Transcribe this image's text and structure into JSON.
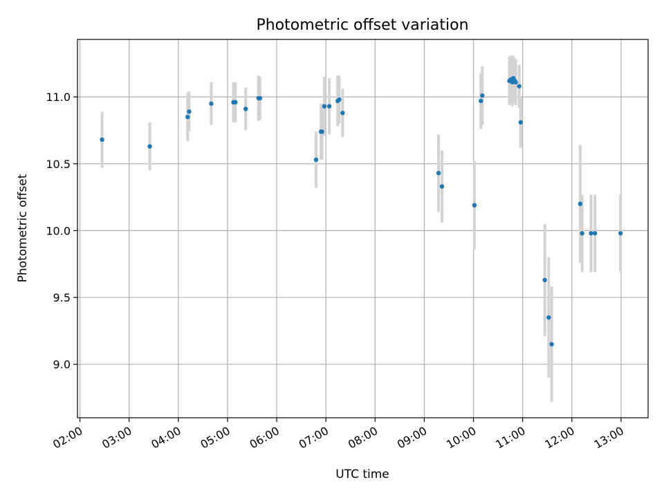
{
  "chart_data": {
    "type": "scatter",
    "title": "Photometric offset variation",
    "xlabel": "UTC time",
    "ylabel": "Photometric offset",
    "x_axis": {
      "unit": "hours UTC",
      "range": [
        1.95,
        13.55
      ],
      "ticks": [
        2,
        3,
        4,
        5,
        6,
        7,
        8,
        9,
        10,
        11,
        12,
        13
      ],
      "tick_labels": [
        "02:00",
        "03:00",
        "04:00",
        "05:00",
        "06:00",
        "07:00",
        "08:00",
        "09:00",
        "10:00",
        "11:00",
        "12:00",
        "13:00"
      ]
    },
    "y_axis": {
      "range": [
        8.6,
        11.43
      ],
      "ticks": [
        9.0,
        9.5,
        10.0,
        10.5,
        11.0
      ],
      "tick_labels": [
        "9.0",
        "9.5",
        "10.0",
        "10.5",
        "11.0"
      ]
    },
    "grid": true,
    "colors": {
      "marker": "#1f77b4",
      "errorbar": "#d3d3d3"
    },
    "points": [
      {
        "x": 2.45,
        "y": 10.68,
        "err": 0.21
      },
      {
        "x": 3.42,
        "y": 10.63,
        "err": 0.18
      },
      {
        "x": 4.19,
        "y": 10.85,
        "err": 0.18
      },
      {
        "x": 4.22,
        "y": 10.89,
        "err": 0.15
      },
      {
        "x": 4.67,
        "y": 10.95,
        "err": 0.16
      },
      {
        "x": 5.12,
        "y": 10.96,
        "err": 0.15
      },
      {
        "x": 5.16,
        "y": 10.96,
        "err": 0.15
      },
      {
        "x": 5.37,
        "y": 10.91,
        "err": 0.16
      },
      {
        "x": 5.63,
        "y": 10.99,
        "err": 0.17
      },
      {
        "x": 5.66,
        "y": 10.99,
        "err": 0.16
      },
      {
        "x": 6.8,
        "y": 10.53,
        "err": 0.21
      },
      {
        "x": 6.9,
        "y": 10.74,
        "err": 0.21
      },
      {
        "x": 6.92,
        "y": 10.74,
        "err": 0.21
      },
      {
        "x": 6.97,
        "y": 10.93,
        "err": 0.22
      },
      {
        "x": 7.07,
        "y": 10.93,
        "err": 0.21
      },
      {
        "x": 7.24,
        "y": 10.97,
        "err": 0.19
      },
      {
        "x": 7.27,
        "y": 10.98,
        "err": 0.18
      },
      {
        "x": 7.34,
        "y": 10.88,
        "err": 0.18
      },
      {
        "x": 9.29,
        "y": 10.43,
        "err": 0.29
      },
      {
        "x": 9.36,
        "y": 10.33,
        "err": 0.27
      },
      {
        "x": 10.02,
        "y": 10.19,
        "err": 0.33
      },
      {
        "x": 10.15,
        "y": 10.97,
        "err": 0.21
      },
      {
        "x": 10.18,
        "y": 11.01,
        "err": 0.22
      },
      {
        "x": 10.73,
        "y": 11.12,
        "err": 0.18
      },
      {
        "x": 10.76,
        "y": 11.13,
        "err": 0.18
      },
      {
        "x": 10.79,
        "y": 11.11,
        "err": 0.18
      },
      {
        "x": 10.81,
        "y": 11.14,
        "err": 0.17
      },
      {
        "x": 10.84,
        "y": 11.12,
        "err": 0.17
      },
      {
        "x": 10.86,
        "y": 11.11,
        "err": 0.17
      },
      {
        "x": 10.93,
        "y": 11.08,
        "err": 0.16
      },
      {
        "x": 10.96,
        "y": 10.81,
        "err": 0.19
      },
      {
        "x": 11.45,
        "y": 9.63,
        "err": 0.42
      },
      {
        "x": 11.53,
        "y": 9.35,
        "err": 0.45
      },
      {
        "x": 11.59,
        "y": 9.15,
        "err": 0.43
      },
      {
        "x": 12.17,
        "y": 10.2,
        "err": 0.44
      },
      {
        "x": 12.21,
        "y": 9.98,
        "err": 0.29
      },
      {
        "x": 12.39,
        "y": 9.98,
        "err": 0.29
      },
      {
        "x": 12.47,
        "y": 9.98,
        "err": 0.29
      },
      {
        "x": 12.99,
        "y": 9.98,
        "err": 0.29
      }
    ]
  }
}
